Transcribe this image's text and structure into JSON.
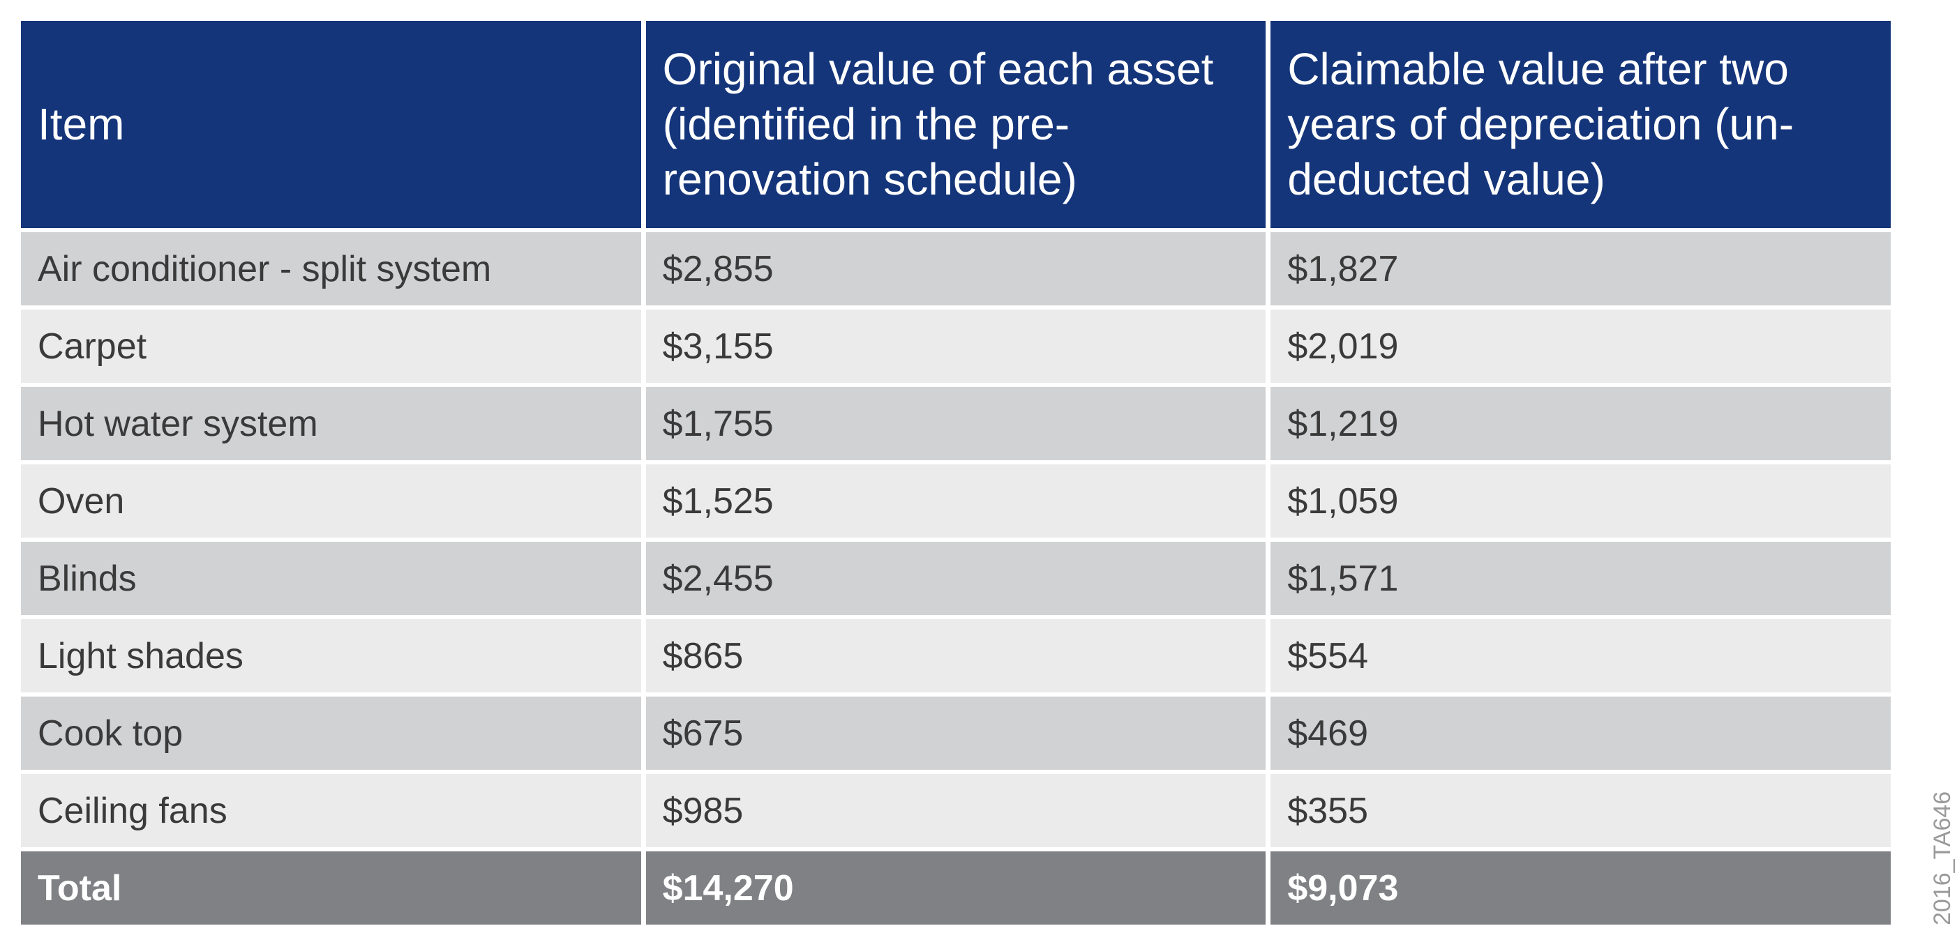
{
  "table": {
    "header": [
      "Item",
      "Original value of each asset (identified in the pre-renovation schedule)",
      "Claimable value after two years of depreciation (un-deducted value)"
    ],
    "rows": [
      [
        "Air conditioner - split system",
        "$2,855",
        "$1,827"
      ],
      [
        "Carpet",
        "$3,155",
        "$2,019"
      ],
      [
        "Hot water system",
        "$1,755",
        "$1,219"
      ],
      [
        "Oven",
        "$1,525",
        "$1,059"
      ],
      [
        "Blinds",
        "$2,455",
        "$1,571"
      ],
      [
        "Light shades",
        "$865",
        "$554"
      ],
      [
        "Cook top",
        "$675",
        "$469"
      ],
      [
        "Ceiling fans",
        "$985",
        "$355"
      ]
    ],
    "total": [
      "Total",
      "$14,270",
      "$9,073"
    ]
  },
  "watermark": "2016_TA646"
}
